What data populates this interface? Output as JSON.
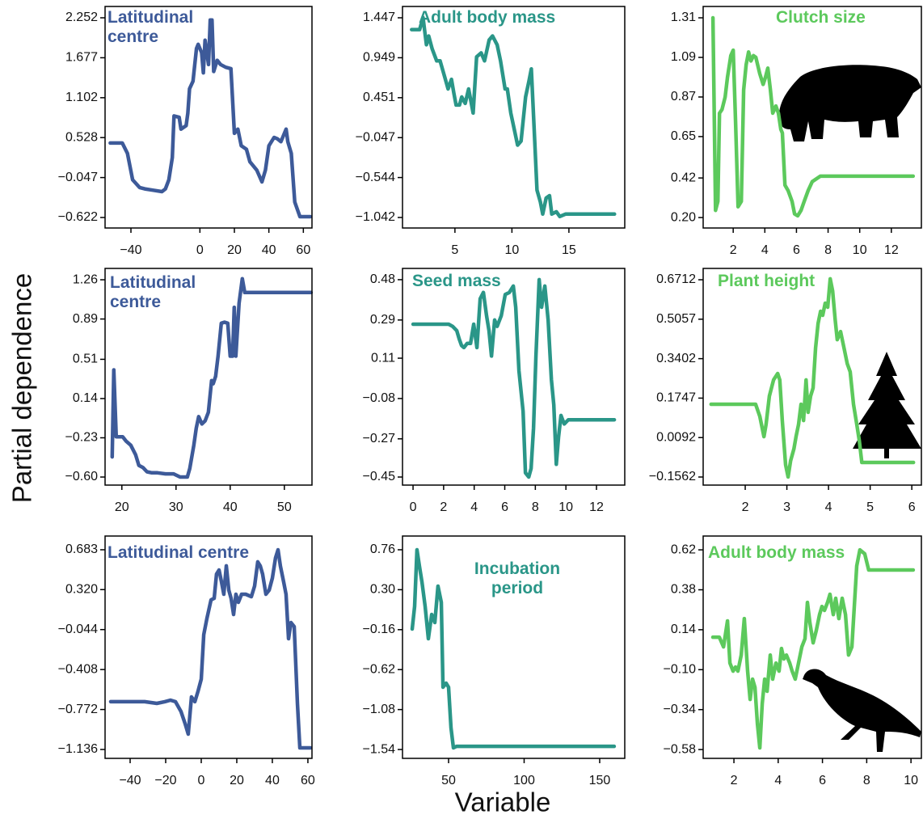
{
  "ylabel": "Partial dependence",
  "xlabel": "Variable",
  "chart_data": [
    {
      "type": "line",
      "title": "Latitudinal centre",
      "color": "#3d5a99",
      "x": [
        -52,
        -45,
        -42,
        -39,
        -35,
        -32,
        -27,
        -22,
        -20,
        -18,
        -16,
        -15,
        -12,
        -11,
        -8,
        -7,
        -6,
        -4,
        -2,
        -1,
        1,
        2,
        3,
        5,
        6,
        7,
        8,
        10,
        12,
        15,
        18,
        20,
        22,
        24,
        27,
        29,
        33,
        36,
        38,
        40,
        43,
        45,
        47,
        50,
        51,
        53,
        55,
        58,
        64
      ],
      "values": [
        0.45,
        0.45,
        0.3,
        -0.08,
        -0.19,
        -0.21,
        -0.23,
        -0.25,
        -0.21,
        -0.08,
        0.24,
        0.84,
        0.82,
        0.65,
        0.7,
        0.88,
        1.23,
        1.34,
        1.81,
        1.87,
        1.75,
        1.46,
        1.93,
        1.58,
        2.22,
        2.22,
        1.48,
        1.64,
        1.58,
        1.54,
        1.52,
        0.59,
        0.65,
        0.41,
        0.36,
        0.18,
        0.06,
        -0.11,
        0.06,
        0.41,
        0.53,
        0.51,
        0.47,
        0.65,
        0.47,
        0.3,
        -0.4,
        -0.61,
        -0.61
      ],
      "xlim": [
        -55,
        65
      ],
      "ylim": [
        -0.773,
        2.415
      ],
      "xticks": [
        {
          "value": -40,
          "label": "−40"
        },
        0,
        20,
        40,
        60
      ],
      "yticks": [
        2.252,
        1.677,
        1.102,
        0.528,
        {
          "value": -0.047,
          "label": "−0.047"
        },
        {
          "value": -0.622,
          "label": "−0.622"
        }
      ]
    },
    {
      "type": "line",
      "title": "Adult body mass",
      "color": "#2a9688",
      "x": [
        1.2,
        1.9,
        2.2,
        2.5,
        2.7,
        3.0,
        3.4,
        3.7,
        4.1,
        4.4,
        4.7,
        4.9,
        5.1,
        5.4,
        5.6,
        5.9,
        6.2,
        6.6,
        6.9,
        7.3,
        7.6,
        8.0,
        8.3,
        8.7,
        9.0,
        9.4,
        9.6,
        9.9,
        10.2,
        10.5,
        10.8,
        11.2,
        11.5,
        11.7,
        12.0,
        12.2,
        12.5,
        12.7,
        13.0,
        13.3,
        13.5,
        13.9,
        14.2,
        14.7,
        19.0
      ],
      "values": [
        1.3,
        1.3,
        1.45,
        1.11,
        1.22,
        1.06,
        0.91,
        0.91,
        0.71,
        0.56,
        0.68,
        0.51,
        0.36,
        0.36,
        0.46,
        0.38,
        0.56,
        0.26,
        0.96,
        1.01,
        0.91,
        1.17,
        1.22,
        1.11,
        0.91,
        0.56,
        0.56,
        0.26,
        0.06,
        -0.14,
        -0.09,
        0.46,
        0.66,
        0.81,
        -0.09,
        -0.7,
        -0.85,
        -1.0,
        -0.8,
        -0.77,
        -1.0,
        -0.97,
        -1.03,
        -1.0,
        -1.0
      ],
      "xlim": [
        0.4,
        19.9
      ],
      "ylim": [
        -1.173,
        1.588
      ],
      "xticks": [
        5,
        10,
        15
      ],
      "yticks": [
        1.447,
        0.949,
        0.451,
        {
          "value": -0.047,
          "label": "−0.047"
        },
        {
          "value": -0.544,
          "label": "−0.544"
        },
        {
          "value": -1.042,
          "label": "−1.042"
        }
      ]
    },
    {
      "type": "line",
      "title": "Clutch size",
      "color": "#5cc95c",
      "x": [
        0.72,
        0.88,
        1.03,
        1.13,
        1.29,
        1.49,
        1.64,
        1.85,
        2.0,
        2.15,
        2.31,
        2.51,
        2.66,
        2.82,
        2.97,
        3.12,
        3.28,
        3.43,
        3.68,
        3.89,
        4.04,
        4.19,
        4.35,
        4.5,
        4.7,
        4.86,
        5.01,
        5.11,
        5.27,
        5.47,
        5.72,
        5.88,
        6.08,
        6.29,
        6.49,
        6.74,
        7.0,
        7.51,
        13.38
      ],
      "values": [
        1.31,
        0.24,
        0.29,
        0.78,
        0.8,
        0.87,
        0.98,
        1.1,
        1.13,
        0.73,
        0.26,
        0.29,
        0.91,
        1.05,
        1.12,
        1.07,
        1.1,
        1.09,
        1.0,
        0.94,
        0.98,
        1.03,
        0.91,
        0.78,
        0.82,
        0.78,
        0.69,
        0.67,
        0.38,
        0.35,
        0.29,
        0.22,
        0.21,
        0.24,
        0.29,
        0.35,
        0.4,
        0.43,
        0.43
      ],
      "xlim": [
        0.1,
        13.9
      ],
      "ylim": [
        0.142,
        1.373
      ],
      "xticks": [
        2,
        4,
        6,
        8,
        10,
        12
      ],
      "yticks": [
        1.31,
        1.09,
        0.87,
        0.65,
        0.42,
        {
          "value": 0.2,
          "label": "0.20"
        }
      ]
    },
    {
      "type": "line",
      "title": "Latitudinal centre",
      "color": "#3d5a99",
      "x": [
        18.21,
        18.51,
        18.96,
        19.4,
        20.15,
        20.75,
        21.64,
        22.54,
        23.13,
        23.88,
        24.63,
        25.52,
        26.57,
        28.06,
        29.55,
        30.75,
        32.09,
        32.54,
        33.28,
        33.73,
        34.18,
        34.78,
        35.37,
        35.97,
        36.57,
        36.87,
        37.31,
        37.76,
        38.36,
        38.96,
        39.55,
        40.0,
        40.45,
        40.75,
        41.04,
        41.64,
        42.24,
        42.69,
        43.73,
        54.93
      ],
      "values": [
        -0.41,
        0.41,
        -0.22,
        -0.22,
        -0.22,
        -0.26,
        -0.3,
        -0.39,
        -0.49,
        -0.51,
        -0.55,
        -0.56,
        -0.56,
        -0.57,
        -0.57,
        -0.6,
        -0.6,
        -0.52,
        -0.3,
        -0.14,
        -0.03,
        -0.1,
        -0.07,
        0.01,
        0.31,
        0.28,
        0.35,
        0.54,
        0.85,
        0.86,
        0.85,
        0.54,
        0.54,
        1.0,
        0.54,
        1.04,
        1.27,
        1.14,
        1.14,
        1.14
      ],
      "xlim": [
        16.9,
        55.1
      ],
      "ylim": [
        -0.676,
        1.367
      ],
      "xticks": [
        20,
        30,
        40,
        50
      ],
      "yticks": [
        1.26,
        0.89,
        0.51,
        0.14,
        {
          "value": -0.23,
          "label": "−0.23"
        },
        {
          "value": -0.6,
          "label": "−0.60"
        }
      ]
    },
    {
      "type": "line",
      "title": "Seed mass",
      "color": "#2a9688",
      "x": [
        0.0,
        2.06,
        2.33,
        2.59,
        2.86,
        3.02,
        3.17,
        3.33,
        3.54,
        3.76,
        3.97,
        4.18,
        4.39,
        4.6,
        4.81,
        4.97,
        5.13,
        5.34,
        5.5,
        5.77,
        6.03,
        6.3,
        6.56,
        6.72,
        6.93,
        7.2,
        7.35,
        7.57,
        7.72,
        7.88,
        8.04,
        8.25,
        8.41,
        8.62,
        8.84,
        9.05,
        9.21,
        9.37,
        9.52,
        9.68,
        9.89,
        10.16,
        10.53,
        13.17
      ],
      "values": [
        0.27,
        0.27,
        0.27,
        0.26,
        0.24,
        0.2,
        0.17,
        0.16,
        0.18,
        0.18,
        0.27,
        0.16,
        0.39,
        0.42,
        0.31,
        0.24,
        0.12,
        0.29,
        0.26,
        0.31,
        0.41,
        0.42,
        0.45,
        0.35,
        0.05,
        -0.14,
        -0.43,
        -0.45,
        -0.41,
        -0.22,
        0.12,
        0.48,
        0.35,
        0.45,
        0.29,
        0.01,
        -0.11,
        -0.39,
        -0.26,
        -0.16,
        -0.2,
        -0.18,
        -0.18,
        -0.18
      ],
      "xlim": [
        -0.69,
        13.85
      ],
      "ylim": [
        -0.488,
        0.533
      ],
      "xticks": [
        0,
        2,
        4,
        6,
        8,
        10,
        12
      ],
      "yticks": [
        0.48,
        0.29,
        0.11,
        {
          "value": -0.08,
          "label": "−0.08"
        },
        {
          "value": -0.27,
          "label": "−0.27"
        },
        {
          "value": -0.45,
          "label": "−0.45"
        }
      ]
    },
    {
      "type": "line",
      "title": "Plant height",
      "color": "#5cc95c",
      "x": [
        1.18,
        2.25,
        2.35,
        2.45,
        2.5,
        2.58,
        2.68,
        2.78,
        2.83,
        2.89,
        2.97,
        3.03,
        3.09,
        3.17,
        3.22,
        3.28,
        3.34,
        3.4,
        3.46,
        3.51,
        3.57,
        3.63,
        3.69,
        3.75,
        3.81,
        3.86,
        3.92,
        3.98,
        4.04,
        4.1,
        4.16,
        4.21,
        4.29,
        4.37,
        4.45,
        4.52,
        4.6,
        4.68,
        4.74,
        4.8,
        6.04
      ],
      "values": [
        0.149,
        0.149,
        0.098,
        0.013,
        0.064,
        0.183,
        0.251,
        0.278,
        0.251,
        0.081,
        -0.105,
        -0.156,
        -0.088,
        -0.038,
        0.013,
        0.064,
        0.149,
        0.081,
        0.251,
        0.115,
        0.183,
        0.217,
        0.386,
        0.488,
        0.539,
        0.522,
        0.573,
        0.556,
        0.675,
        0.624,
        0.505,
        0.42,
        0.454,
        0.386,
        0.319,
        0.285,
        0.149,
        0.064,
        -0.004,
        -0.095,
        -0.095
      ],
      "xlim": [
        0.99,
        6.23
      ],
      "ylim": [
        -0.1901,
        0.7187
      ],
      "xticks": [
        2,
        3,
        4,
        5,
        6
      ],
      "yticks": [
        0.6712,
        0.5057,
        0.3402,
        0.1747,
        0.0092,
        {
          "value": -0.1562,
          "label": "−0.1562"
        }
      ]
    },
    {
      "type": "line",
      "title": "Latitudinal centre",
      "color": "#3d5a99",
      "x": [
        -50.9,
        -31.8,
        -25,
        -20.5,
        -17.3,
        -14.5,
        -11.4,
        -9.1,
        -7.3,
        -5.5,
        -3.6,
        -1.8,
        0,
        1.4,
        3.2,
        5.5,
        7.3,
        8.6,
        10,
        11.4,
        12.7,
        14.1,
        15.5,
        16.8,
        18.2,
        19.5,
        20.9,
        22.7,
        25,
        28.2,
        30,
        31.8,
        33.2,
        34.5,
        36.4,
        38.2,
        40,
        41.8,
        43.2,
        44.5,
        46.4,
        47.7,
        49.1,
        50.5,
        52.3,
        54.1,
        55.5,
        61.4
      ],
      "values": [
        -0.701,
        -0.701,
        -0.716,
        -0.701,
        -0.687,
        -0.701,
        -0.79,
        -0.9,
        -0.996,
        -0.657,
        -0.701,
        -0.606,
        -0.495,
        -0.09,
        0.057,
        0.226,
        0.241,
        0.462,
        0.499,
        0.388,
        0.278,
        0.536,
        0.315,
        0.241,
        0.094,
        0.278,
        0.204,
        0.278,
        0.278,
        0.256,
        0.352,
        0.573,
        0.536,
        0.462,
        0.278,
        0.315,
        0.425,
        0.609,
        0.683,
        0.536,
        0.388,
        0.278,
        -0.127,
        0.02,
        -0.017,
        -0.716,
        -1.121,
        -1.121
      ],
      "xlim": [
        -54.1,
        62.3
      ],
      "ylim": [
        -1.217,
        0.808
      ],
      "xticks": [
        {
          "value": -40,
          "label": "−40"
        },
        {
          "value": -20,
          "label": "−20"
        },
        0,
        20,
        40,
        60
      ],
      "yticks": [
        0.683,
        {
          "value": 0.32,
          "label": "0.320"
        },
        {
          "value": -0.044,
          "label": "−0.044"
        },
        {
          "value": -0.408,
          "label": "−0.408"
        },
        {
          "value": -0.772,
          "label": "−0.772"
        },
        {
          "value": -1.136,
          "label": "−1.136"
        }
      ]
    },
    {
      "type": "line",
      "title": "Incubation period",
      "color": "#2a9688",
      "x": [
        25.9,
        27.5,
        29.1,
        30.7,
        32.4,
        34.5,
        36.6,
        38.8,
        40.9,
        43.0,
        45.2,
        46.3,
        48.4,
        50,
        51.6,
        53.2,
        55.3,
        159.6
      ],
      "values": [
        -0.153,
        0.108,
        0.76,
        0.574,
        0.387,
        0.108,
        -0.264,
        0.015,
        -0.078,
        0.341,
        0.155,
        -0.823,
        -0.776,
        -0.823,
        -1.289,
        -1.521,
        -1.503,
        -1.503
      ],
      "xlim": [
        19.5,
        166.6
      ],
      "ylim": [
        -1.642,
        0.918
      ],
      "xticks": [
        50,
        100,
        150
      ],
      "yticks": [
        0.76,
        {
          "value": 0.3,
          "label": "0.30"
        },
        {
          "value": -0.16,
          "label": "−0.16"
        },
        {
          "value": -0.62,
          "label": "−0.62"
        },
        {
          "value": -1.08,
          "label": "−1.08"
        },
        {
          "value": -1.54,
          "label": "−1.54"
        }
      ]
    },
    {
      "type": "line",
      "title": "Adult body mass",
      "color": "#5cc95c",
      "x": [
        1.05,
        1.34,
        1.53,
        1.71,
        1.82,
        1.96,
        2.07,
        2.18,
        2.33,
        2.47,
        2.62,
        2.73,
        2.84,
        2.95,
        3.06,
        3.17,
        3.28,
        3.39,
        3.5,
        3.64,
        3.75,
        3.9,
        4.04,
        4.15,
        4.26,
        4.37,
        4.52,
        4.63,
        4.77,
        4.92,
        5.07,
        5.21,
        5.32,
        5.43,
        5.58,
        5.72,
        5.87,
        5.98,
        6.09,
        6.23,
        6.34,
        6.49,
        6.6,
        6.74,
        6.89,
        7.04,
        7.18,
        7.33,
        7.44,
        7.55,
        7.69,
        7.91,
        8.09,
        8.28,
        10.1
      ],
      "values": [
        0.095,
        0.095,
        0.037,
        0.193,
        -0.06,
        -0.109,
        -0.084,
        -0.109,
        -0.012,
        0.207,
        -0.109,
        -0.279,
        -0.157,
        -0.206,
        -0.424,
        -0.57,
        -0.303,
        -0.157,
        -0.23,
        -0.012,
        -0.157,
        -0.06,
        -0.109,
        0.027,
        -0.036,
        -0.012,
        -0.06,
        -0.109,
        -0.157,
        -0.06,
        0.037,
        0.086,
        0.304,
        0.183,
        0.061,
        0.134,
        0.231,
        0.28,
        0.256,
        0.304,
        0.353,
        0.231,
        0.329,
        0.207,
        0.329,
        0.231,
        -0.012,
        0.037,
        0.28,
        0.523,
        0.62,
        0.596,
        0.499,
        0.499,
        0.499
      ],
      "xlim": [
        0.61,
        10.47
      ],
      "ylim": [
        -0.633,
        0.703
      ],
      "xticks": [
        2,
        4,
        6,
        8,
        10
      ],
      "yticks": [
        0.62,
        0.38,
        0.14,
        {
          "value": -0.1,
          "label": "−0.10"
        },
        {
          "value": -0.34,
          "label": "−0.34"
        },
        {
          "value": -0.58,
          "label": "−0.58"
        }
      ]
    }
  ]
}
